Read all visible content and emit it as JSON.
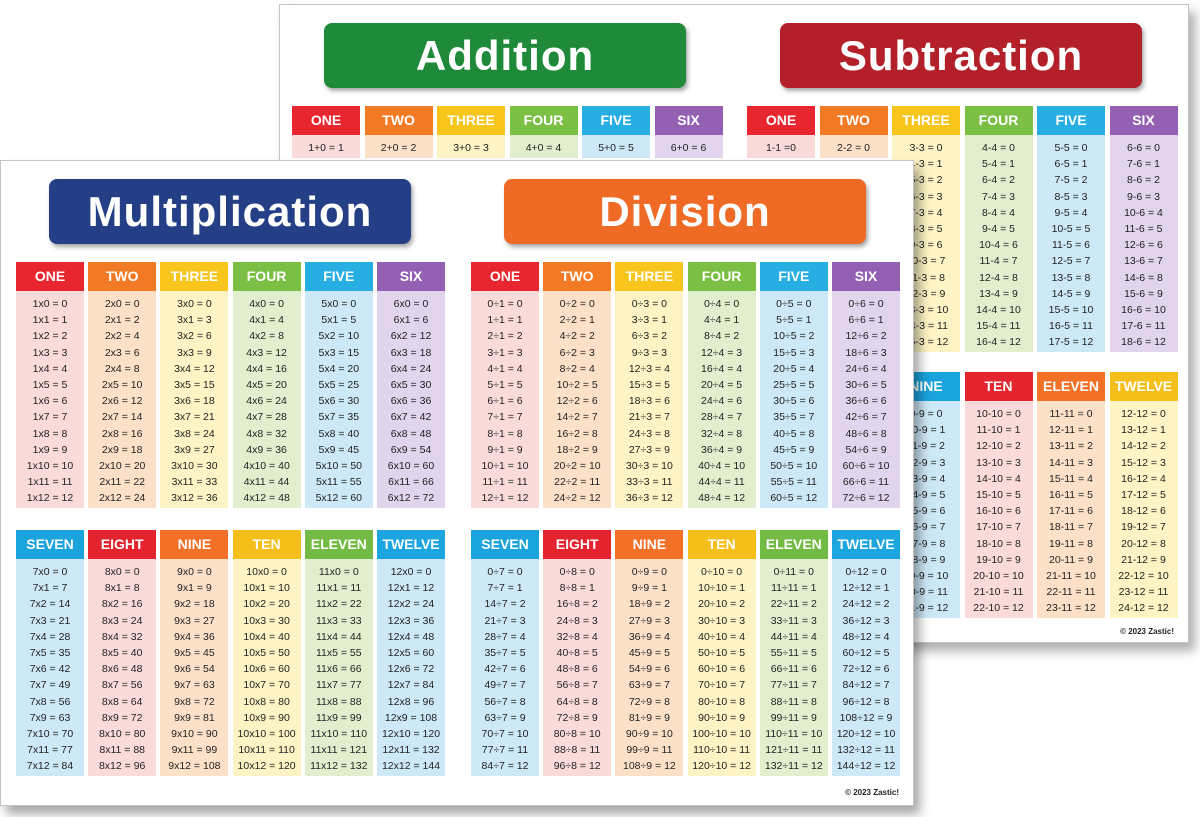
{
  "copyright": "© 2023 Zastic!",
  "back_sheet": {
    "addition": {
      "title": "Addition",
      "title_color": "#1f8a3a",
      "columns": [
        {
          "label": "ONE",
          "cells": [
            "1+0 = 1"
          ]
        },
        {
          "label": "TWO",
          "cells": [
            "2+0 = 2"
          ]
        },
        {
          "label": "THREE",
          "cells": [
            "3+0 = 3"
          ]
        },
        {
          "label": "FOUR",
          "cells": [
            "4+0 = 4"
          ]
        },
        {
          "label": "FIVE",
          "cells": [
            "5+0 = 5"
          ]
        },
        {
          "label": "SIX",
          "cells": [
            "6+0 = 6"
          ]
        }
      ]
    },
    "subtraction": {
      "title": "Subtraction",
      "title_color": "#b3202a",
      "columns": [
        {
          "label": "ONE",
          "cells": [
            "1-1 =0"
          ]
        },
        {
          "label": "TWO",
          "cells": [
            "2-2 = 0"
          ]
        },
        {
          "label": "THREE",
          "cells": [
            "3-3 = 0",
            "4-3 = 1",
            "5-3 = 2",
            "6-3 = 3",
            "7-3 = 4",
            "8-3 = 5",
            "9-3 = 6",
            "10-3 = 7",
            "11-3 = 8",
            "12-3 = 9",
            "13-3 = 10",
            "14-3 = 11",
            "15-3 = 12"
          ]
        },
        {
          "label": "FOUR",
          "cells": [
            "4-4 = 0",
            "5-4 = 1",
            "6-4 = 2",
            "7-4 = 3",
            "8-4 = 4",
            "9-4 = 5",
            "10-4 = 6",
            "11-4 = 7",
            "12-4 = 8",
            "13-4 = 9",
            "14-4 = 10",
            "15-4 = 11",
            "16-4 = 12"
          ]
        },
        {
          "label": "FIVE",
          "cells": [
            "5-5 = 0",
            "6-5 = 1",
            "7-5 = 2",
            "8-5 = 3",
            "9-5 = 4",
            "10-5 = 5",
            "11-5 = 6",
            "12-5 = 7",
            "13-5 = 8",
            "14-5 = 9",
            "15-5 = 10",
            "16-5 = 11",
            "17-5 = 12"
          ]
        },
        {
          "label": "SIX",
          "cells": [
            "6-6 = 0",
            "7-6 = 1",
            "8-6 = 2",
            "9-6 = 3",
            "10-6 = 4",
            "11-6 = 5",
            "12-6 = 6",
            "13-6 = 7",
            "14-6 = 8",
            "15-6 = 9",
            "16-6 = 10",
            "17-6 = 11",
            "18-6 = 12"
          ]
        },
        {
          "label": "NINE",
          "cells": [
            "9-9 = 0",
            "10-9 = 1",
            "11-9 = 2",
            "12-9 = 3",
            "13-9 = 4",
            "14-9 = 5",
            "15-9 = 6",
            "16-9 = 7",
            "17-9 = 8",
            "18-9 = 9",
            "19-9 = 10",
            "20-9 = 11",
            "21-9 = 12"
          ]
        },
        {
          "label": "TEN",
          "cells": [
            "10-10 = 0",
            "11-10 = 1",
            "12-10 = 2",
            "13-10 = 3",
            "14-10 = 4",
            "15-10 = 5",
            "16-10 = 6",
            "17-10 = 7",
            "18-10 = 8",
            "19-10 = 9",
            "20-10 = 10",
            "21-10 = 11",
            "22-10 = 12"
          ]
        },
        {
          "label": "ELEVEN",
          "cells": [
            "11-11 = 0",
            "12-11 = 1",
            "13-11 = 2",
            "14-11 = 3",
            "15-11 = 4",
            "16-11 = 5",
            "17-11 = 6",
            "18-11 = 7",
            "19-11 = 8",
            "20-11 = 9",
            "21-11 = 10",
            "22-11 = 11",
            "23-11 = 12"
          ]
        },
        {
          "label": "TWELVE",
          "cells": [
            "12-12 = 0",
            "13-12 = 1",
            "14-12 = 2",
            "15-12 = 3",
            "16-12 = 4",
            "17-12 = 5",
            "18-12 = 6",
            "19-12 = 7",
            "20-12 = 8",
            "21-12 = 9",
            "22-12 = 10",
            "23-12 = 11",
            "24-12 = 12"
          ]
        }
      ]
    }
  },
  "front_sheet": {
    "multiplication": {
      "title": "Multiplication",
      "title_color": "#243f85",
      "columns": [
        {
          "label": "ONE",
          "cells": [
            "1x0 = 0",
            "1x1 = 1",
            "1x2 = 2",
            "1x3 = 3",
            "1x4 = 4",
            "1x5 = 5",
            "1x6 = 6",
            "1x7 = 7",
            "1x8 = 8",
            "1x9 = 9",
            "1x10 = 10",
            "1x11 = 11",
            "1x12 = 12"
          ]
        },
        {
          "label": "TWO",
          "cells": [
            "2x0 = 0",
            "2x1 = 2",
            "2x2 = 4",
            "2x3 = 6",
            "2x4 = 8",
            "2x5 = 10",
            "2x6 = 12",
            "2x7 = 14",
            "2x8 = 16",
            "2x9 = 18",
            "2x10 = 20",
            "2x11 = 22",
            "2x12 = 24"
          ]
        },
        {
          "label": "THREE",
          "cells": [
            "3x0 = 0",
            "3x1 = 3",
            "3x2 = 6",
            "3x3 = 9",
            "3x4 = 12",
            "3x5 = 15",
            "3x6 = 18",
            "3x7 = 21",
            "3x8 = 24",
            "3x9 = 27",
            "3x10 = 30",
            "3x11 = 33",
            "3x12 = 36"
          ]
        },
        {
          "label": "FOUR",
          "cells": [
            "4x0 = 0",
            "4x1 = 4",
            "4x2 = 8",
            "4x3 = 12",
            "4x4 = 16",
            "4x5 = 20",
            "4x6 = 24",
            "4x7 = 28",
            "4x8 = 32",
            "4x9 = 36",
            "4x10 = 40",
            "4x11 = 44",
            "4x12 = 48"
          ]
        },
        {
          "label": "FIVE",
          "cells": [
            "5x0 = 0",
            "5x1 = 5",
            "5x2 = 10",
            "5x3 = 15",
            "5x4 = 20",
            "5x5 = 25",
            "5x6 = 30",
            "5x7 = 35",
            "5x8 = 40",
            "5x9 = 45",
            "5x10 = 50",
            "5x11 = 55",
            "5x12 = 60"
          ]
        },
        {
          "label": "SIX",
          "cells": [
            "6x0 = 0",
            "6x1 = 6",
            "6x2 = 12",
            "6x3 = 18",
            "6x4 = 24",
            "6x5 = 30",
            "6x6 = 36",
            "6x7 = 42",
            "6x8 = 48",
            "6x9 = 54",
            "6x10 = 60",
            "6x11 = 66",
            "6x12 = 72"
          ]
        },
        {
          "label": "SEVEN",
          "cells": [
            "7x0 = 0",
            "7x1 = 7",
            "7x2 = 14",
            "7x3 = 21",
            "7x4 = 28",
            "7x5 = 35",
            "7x6 = 42",
            "7x7 = 49",
            "7x8 = 56",
            "7x9 = 63",
            "7x10 = 70",
            "7x11 = 77",
            "7x12 = 84"
          ]
        },
        {
          "label": "EIGHT",
          "cells": [
            "8x0 = 0",
            "8x1 = 8",
            "8x2 = 16",
            "8x3 = 24",
            "8x4 = 32",
            "8x5 = 40",
            "8x6 = 48",
            "8x7 = 56",
            "8x8 = 64",
            "8x9 = 72",
            "8x10 = 80",
            "8x11 = 88",
            "8x12 = 96"
          ]
        },
        {
          "label": "NINE",
          "cells": [
            "9x0 = 0",
            "9x1 = 9",
            "9x2 = 18",
            "9x3 = 27",
            "9x4 = 36",
            "9x5 = 45",
            "9x6 = 54",
            "9x7 = 63",
            "9x8 = 72",
            "9x9 = 81",
            "9x10 = 90",
            "9x11 = 99",
            "9x12 = 108"
          ]
        },
        {
          "label": "TEN",
          "cells": [
            "10x0 = 0",
            "10x1 = 10",
            "10x2 = 20",
            "10x3 = 30",
            "10x4 = 40",
            "10x5 = 50",
            "10x6 = 60",
            "10x7 = 70",
            "10x8 = 80",
            "10x9 = 90",
            "10x10 = 100",
            "10x11 = 110",
            "10x12 = 120"
          ]
        },
        {
          "label": "ELEVEN",
          "cells": [
            "11x0 = 0",
            "11x1 = 11",
            "11x2 = 22",
            "11x3 = 33",
            "11x4 = 44",
            "11x5 = 55",
            "11x6 = 66",
            "11x7 = 77",
            "11x8 = 88",
            "11x9 = 99",
            "11x10 = 110",
            "11x11 = 121",
            "11x12 = 132"
          ]
        },
        {
          "label": "TWELVE",
          "cells": [
            "12x0 = 0",
            "12x1 = 12",
            "12x2 = 24",
            "12x3 = 36",
            "12x4 = 48",
            "12x5 = 60",
            "12x6 = 72",
            "12x7 = 84",
            "12x8 = 96",
            "12x9 = 108",
            "12x10 = 120",
            "12x11 = 132",
            "12x12 = 144"
          ]
        }
      ]
    },
    "division": {
      "title": "Division",
      "title_color": "#ef6a25",
      "columns": [
        {
          "label": "ONE",
          "cells": [
            "0÷1 = 0",
            "1÷1 = 1",
            "2÷1 = 2",
            "3÷1 = 3",
            "4÷1 = 4",
            "5÷1 = 5",
            "6÷1 = 6",
            "7÷1 = 7",
            "8÷1 = 8",
            "9÷1 = 9",
            "10÷1 = 10",
            "11÷1 = 11",
            "12÷1 = 12"
          ]
        },
        {
          "label": "TWO",
          "cells": [
            "0÷2 = 0",
            "2÷2 = 1",
            "4÷2 = 2",
            "6÷2 = 3",
            "8÷2 = 4",
            "10÷2 = 5",
            "12÷2 = 6",
            "14÷2 = 7",
            "16÷2 = 8",
            "18÷2 = 9",
            "20÷2 = 10",
            "22÷2 = 11",
            "24÷2 = 12"
          ]
        },
        {
          "label": "THREE",
          "cells": [
            "0÷3 = 0",
            "3÷3 = 1",
            "6÷3 = 2",
            "9÷3 = 3",
            "12÷3 = 4",
            "15÷3 = 5",
            "18÷3 = 6",
            "21÷3 = 7",
            "24÷3 = 8",
            "27÷3 = 9",
            "30÷3 = 10",
            "33÷3 = 11",
            "36÷3 = 12"
          ]
        },
        {
          "label": "FOUR",
          "cells": [
            "0÷4 = 0",
            "4÷4 = 1",
            "8÷4 = 2",
            "12÷4 = 3",
            "16÷4 = 4",
            "20÷4 = 5",
            "24÷4 = 6",
            "28÷4 = 7",
            "32÷4 = 8",
            "36÷4 = 9",
            "40÷4 = 10",
            "44÷4 = 11",
            "48÷4 = 12"
          ]
        },
        {
          "label": "FIVE",
          "cells": [
            "0÷5 = 0",
            "5÷5 = 1",
            "10÷5 = 2",
            "15÷5 = 3",
            "20÷5 = 4",
            "25÷5 = 5",
            "30÷5 = 6",
            "35÷5 = 7",
            "40÷5 = 8",
            "45÷5 = 9",
            "50÷5 = 10",
            "55÷5 = 11",
            "60÷5 = 12"
          ]
        },
        {
          "label": "SIX",
          "cells": [
            "0÷6 = 0",
            "6÷6 = 1",
            "12÷6 = 2",
            "18÷6 = 3",
            "24÷6 = 4",
            "30÷6 = 5",
            "36÷6 = 6",
            "42÷6 = 7",
            "48÷6 = 8",
            "54÷6 = 9",
            "60÷6 = 10",
            "66÷6 = 11",
            "72÷6 = 12"
          ]
        },
        {
          "label": "SEVEN",
          "cells": [
            "0÷7 = 0",
            "7÷7 = 1",
            "14÷7 = 2",
            "21÷7 = 3",
            "28÷7 = 4",
            "35÷7 = 5",
            "42÷7 = 6",
            "49÷7 = 7",
            "56÷7 = 8",
            "63÷7 = 9",
            "70÷7 = 10",
            "77÷7 = 11",
            "84÷7 = 12"
          ]
        },
        {
          "label": "EIGHT",
          "cells": [
            "0÷8 = 0",
            "8÷8 = 1",
            "16÷8 = 2",
            "24÷8 = 3",
            "32÷8 = 4",
            "40÷8 = 5",
            "48÷8 = 6",
            "56÷8 = 7",
            "64÷8 = 8",
            "72÷8 = 9",
            "80÷8 = 10",
            "88÷8 = 11",
            "96÷8 = 12"
          ]
        },
        {
          "label": "NINE",
          "cells": [
            "0÷9 = 0",
            "9÷9 = 1",
            "18÷9 = 2",
            "27÷9 = 3",
            "36÷9 = 4",
            "45÷9 = 5",
            "54÷9 = 6",
            "63÷9 = 7",
            "72÷9 = 8",
            "81÷9 = 9",
            "90÷9 = 10",
            "99÷9 = 11",
            "108÷9 = 12"
          ]
        },
        {
          "label": "TEN",
          "cells": [
            "0÷10 = 0",
            "10÷10 = 1",
            "20÷10 = 2",
            "30÷10 = 3",
            "40÷10 = 4",
            "50÷10 = 5",
            "60÷10 = 6",
            "70÷10 = 7",
            "80÷10 = 8",
            "90÷10 = 9",
            "100÷10 = 10",
            "110÷10 = 11",
            "120÷10 = 12"
          ]
        },
        {
          "label": "ELEVEN",
          "cells": [
            "0÷11 = 0",
            "11÷11 = 1",
            "22÷11 = 2",
            "33÷11 = 3",
            "44÷11 = 4",
            "55÷11 = 5",
            "66÷11 = 6",
            "77÷11 = 7",
            "88÷11 = 8",
            "99÷11 = 9",
            "110÷11 = 10",
            "121÷11 = 11",
            "132÷11 = 12"
          ]
        },
        {
          "label": "TWELVE",
          "cells": [
            "0÷12 = 0",
            "12÷12 = 1",
            "24÷12 = 2",
            "36÷12 = 3",
            "48÷12 = 4",
            "60÷12 = 5",
            "72÷12 = 6",
            "84÷12 = 7",
            "96÷12 = 8",
            "108÷12 = 9",
            "120÷12 = 10",
            "132÷12 = 11",
            "144÷12 = 12"
          ]
        }
      ]
    }
  },
  "palette": {
    "header_colors": [
      "#e8262f",
      "#f37a25",
      "#f7c51b",
      "#7bbf45",
      "#27aee2",
      "#9360b4",
      "#1aa3dc",
      "#e3242e",
      "#f27127",
      "#f4bf1b",
      "#73bb45",
      "#1da5df"
    ],
    "body_colors": [
      "#fbdada",
      "#fde0c8",
      "#fdf3c4",
      "#e1efcf",
      "#cde8f6",
      "#e2d4ec",
      "#cde8f6",
      "#fbdada",
      "#fde0c8",
      "#fdf3c4",
      "#e1efcf",
      "#cde8f6"
    ]
  }
}
